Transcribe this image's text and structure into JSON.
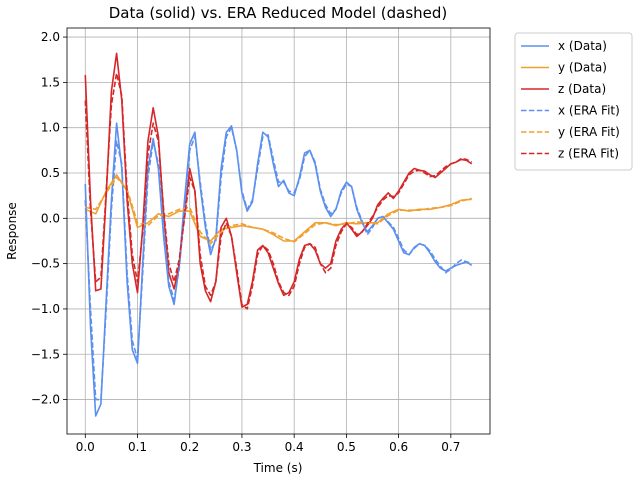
{
  "chart_data": {
    "type": "line",
    "title": "Data (solid) vs. ERA Reduced Model (dashed)",
    "xlabel": "Time (s)",
    "ylabel": "Response",
    "xlim": [
      -0.035,
      0.775
    ],
    "ylim": [
      -2.38,
      2.1
    ],
    "xticks": [
      0.0,
      0.1,
      0.2,
      0.3,
      0.4,
      0.5,
      0.6,
      0.7
    ],
    "xtick_labels": [
      "0.0",
      "0.1",
      "0.2",
      "0.3",
      "0.4",
      "0.5",
      "0.6",
      "0.7"
    ],
    "yticks": [
      2.0,
      1.5,
      1.0,
      0.5,
      0.0,
      -0.5,
      -1.0,
      -1.5,
      -2.0
    ],
    "ytick_labels": [
      "2.0",
      "1.5",
      "1.0",
      "0.5",
      "0.0",
      "−0.5",
      "−1.0",
      "−1.5",
      "−2.0"
    ],
    "grid": true,
    "legend_position": "outside-top-right",
    "series": [
      {
        "name": "x (Data)",
        "color": "#5b8ff0",
        "dash": "solid",
        "x": [
          0.0,
          0.01,
          0.02,
          0.03,
          0.04,
          0.05,
          0.06,
          0.07,
          0.08,
          0.09,
          0.1,
          0.11,
          0.12,
          0.13,
          0.14,
          0.15,
          0.16,
          0.17,
          0.18,
          0.19,
          0.2,
          0.21,
          0.22,
          0.23,
          0.24,
          0.25,
          0.26,
          0.27,
          0.28,
          0.29,
          0.3,
          0.31,
          0.32,
          0.33,
          0.34,
          0.35,
          0.36,
          0.37,
          0.38,
          0.39,
          0.4,
          0.41,
          0.42,
          0.43,
          0.44,
          0.45,
          0.46,
          0.47,
          0.48,
          0.49,
          0.5,
          0.51,
          0.52,
          0.53,
          0.54,
          0.55,
          0.56,
          0.57,
          0.58,
          0.59,
          0.6,
          0.61,
          0.62,
          0.63,
          0.64,
          0.65,
          0.66,
          0.67,
          0.68,
          0.69,
          0.7,
          0.71,
          0.72,
          0.73,
          0.74
        ],
        "y": [
          0.38,
          -1.2,
          -2.18,
          -2.05,
          -0.9,
          0.2,
          1.05,
          0.55,
          -0.7,
          -1.45,
          -1.6,
          -0.5,
          0.55,
          0.88,
          0.55,
          -0.2,
          -0.75,
          -0.95,
          -0.5,
          0.2,
          0.82,
          0.95,
          0.35,
          -0.1,
          -0.4,
          -0.22,
          0.55,
          0.95,
          1.02,
          0.75,
          0.28,
          0.08,
          0.18,
          0.6,
          0.95,
          0.9,
          0.6,
          0.35,
          0.42,
          0.28,
          0.25,
          0.45,
          0.72,
          0.75,
          0.6,
          0.3,
          0.12,
          0.02,
          0.1,
          0.3,
          0.4,
          0.35,
          0.1,
          -0.05,
          -0.15,
          -0.08,
          0.0,
          0.02,
          -0.05,
          -0.12,
          -0.25,
          -0.38,
          -0.4,
          -0.32,
          -0.28,
          -0.3,
          -0.38,
          -0.48,
          -0.55,
          -0.58,
          -0.55,
          -0.52,
          -0.5,
          -0.48,
          -0.52
        ]
      },
      {
        "name": "y (Data)",
        "color": "#f0a030",
        "dash": "solid",
        "x": [
          0.0,
          0.02,
          0.04,
          0.06,
          0.08,
          0.1,
          0.12,
          0.14,
          0.16,
          0.18,
          0.2,
          0.22,
          0.24,
          0.26,
          0.28,
          0.3,
          0.32,
          0.34,
          0.36,
          0.38,
          0.4,
          0.42,
          0.44,
          0.46,
          0.48,
          0.5,
          0.52,
          0.54,
          0.56,
          0.58,
          0.6,
          0.62,
          0.64,
          0.66,
          0.68,
          0.7,
          0.72,
          0.74
        ],
        "y": [
          0.1,
          0.05,
          0.3,
          0.48,
          0.3,
          -0.1,
          -0.05,
          0.05,
          0.02,
          0.08,
          0.08,
          -0.2,
          -0.25,
          -0.12,
          -0.1,
          -0.08,
          -0.1,
          -0.12,
          -0.18,
          -0.25,
          -0.25,
          -0.15,
          -0.05,
          -0.05,
          -0.08,
          -0.05,
          -0.06,
          -0.05,
          -0.05,
          0.05,
          0.1,
          0.08,
          0.1,
          0.1,
          0.12,
          0.15,
          0.2,
          0.21
        ]
      },
      {
        "name": "z (Data)",
        "color": "#d62728",
        "dash": "solid",
        "x": [
          0.0,
          0.01,
          0.02,
          0.03,
          0.04,
          0.05,
          0.06,
          0.07,
          0.08,
          0.09,
          0.1,
          0.11,
          0.12,
          0.13,
          0.14,
          0.15,
          0.16,
          0.17,
          0.18,
          0.19,
          0.2,
          0.21,
          0.22,
          0.23,
          0.24,
          0.25,
          0.26,
          0.27,
          0.28,
          0.29,
          0.3,
          0.31,
          0.32,
          0.33,
          0.34,
          0.35,
          0.36,
          0.37,
          0.38,
          0.39,
          0.4,
          0.41,
          0.42,
          0.43,
          0.44,
          0.45,
          0.46,
          0.47,
          0.48,
          0.49,
          0.5,
          0.51,
          0.52,
          0.53,
          0.54,
          0.55,
          0.56,
          0.57,
          0.58,
          0.59,
          0.6,
          0.61,
          0.62,
          0.63,
          0.64,
          0.65,
          0.66,
          0.67,
          0.68,
          0.69,
          0.7,
          0.71,
          0.72,
          0.73,
          0.74
        ],
        "y": [
          1.58,
          0.2,
          -0.8,
          -0.78,
          0.25,
          1.4,
          1.82,
          1.3,
          0.2,
          -0.5,
          -0.82,
          -0.1,
          0.85,
          1.22,
          0.9,
          0.05,
          -0.6,
          -0.78,
          -0.5,
          0.05,
          0.55,
          0.3,
          -0.5,
          -0.8,
          -0.92,
          -0.7,
          -0.1,
          0.0,
          -0.2,
          -0.6,
          -0.98,
          -0.95,
          -0.7,
          -0.35,
          -0.3,
          -0.38,
          -0.55,
          -0.72,
          -0.85,
          -0.82,
          -0.7,
          -0.45,
          -0.3,
          -0.28,
          -0.35,
          -0.5,
          -0.55,
          -0.5,
          -0.25,
          -0.12,
          -0.05,
          -0.12,
          -0.2,
          -0.15,
          -0.08,
          0.0,
          0.15,
          0.22,
          0.28,
          0.22,
          0.3,
          0.4,
          0.5,
          0.55,
          0.53,
          0.52,
          0.48,
          0.45,
          0.5,
          0.55,
          0.6,
          0.62,
          0.65,
          0.64,
          0.6
        ]
      },
      {
        "name": "x (ERA Fit)",
        "color": "#5b8ff0",
        "dash": "dashed",
        "x": [
          0.0,
          0.01,
          0.02,
          0.03,
          0.04,
          0.05,
          0.06,
          0.07,
          0.08,
          0.09,
          0.1,
          0.11,
          0.12,
          0.13,
          0.14,
          0.15,
          0.16,
          0.17,
          0.18,
          0.19,
          0.2,
          0.21,
          0.22,
          0.23,
          0.24,
          0.25,
          0.26,
          0.27,
          0.28,
          0.29,
          0.3,
          0.31,
          0.32,
          0.33,
          0.34,
          0.35,
          0.36,
          0.37,
          0.38,
          0.39,
          0.4,
          0.41,
          0.42,
          0.43,
          0.44,
          0.45,
          0.46,
          0.47,
          0.48,
          0.49,
          0.5,
          0.51,
          0.52,
          0.53,
          0.54,
          0.55,
          0.56,
          0.57,
          0.58,
          0.59,
          0.6,
          0.61,
          0.62,
          0.63,
          0.64,
          0.65,
          0.66,
          0.67,
          0.68,
          0.69,
          0.7,
          0.71,
          0.72,
          0.73,
          0.74
        ],
        "y": [
          0.2,
          -1.0,
          -2.0,
          -2.0,
          -1.0,
          0.1,
          0.85,
          0.6,
          -0.6,
          -1.35,
          -1.55,
          -0.6,
          0.45,
          0.85,
          0.6,
          -0.1,
          -0.7,
          -0.9,
          -0.55,
          0.1,
          0.75,
          0.9,
          0.4,
          -0.05,
          -0.35,
          -0.25,
          0.45,
          0.9,
          1.0,
          0.75,
          0.3,
          0.1,
          0.2,
          0.55,
          0.9,
          0.92,
          0.65,
          0.4,
          0.4,
          0.3,
          0.28,
          0.42,
          0.68,
          0.75,
          0.62,
          0.32,
          0.15,
          0.05,
          0.1,
          0.28,
          0.38,
          0.35,
          0.12,
          -0.03,
          -0.18,
          -0.1,
          0.0,
          0.02,
          -0.04,
          -0.1,
          -0.22,
          -0.35,
          -0.4,
          -0.33,
          -0.28,
          -0.3,
          -0.36,
          -0.45,
          -0.53,
          -0.6,
          -0.56,
          -0.5,
          -0.46,
          -0.48,
          -0.5
        ]
      },
      {
        "name": "y (ERA Fit)",
        "color": "#f0a030",
        "dash": "dashed",
        "x": [
          0.0,
          0.02,
          0.04,
          0.06,
          0.08,
          0.1,
          0.12,
          0.14,
          0.16,
          0.18,
          0.2,
          0.22,
          0.24,
          0.26,
          0.28,
          0.3,
          0.32,
          0.34,
          0.36,
          0.38,
          0.4,
          0.42,
          0.44,
          0.46,
          0.48,
          0.5,
          0.52,
          0.54,
          0.56,
          0.58,
          0.6,
          0.62,
          0.64,
          0.66,
          0.68,
          0.7,
          0.72,
          0.74
        ],
        "y": [
          0.12,
          0.1,
          0.28,
          0.45,
          0.32,
          -0.05,
          -0.08,
          0.03,
          0.05,
          0.1,
          0.12,
          -0.15,
          -0.28,
          -0.15,
          -0.08,
          -0.06,
          -0.1,
          -0.12,
          -0.16,
          -0.22,
          -0.26,
          -0.17,
          -0.07,
          -0.05,
          -0.07,
          -0.06,
          -0.04,
          -0.05,
          -0.06,
          0.03,
          0.09,
          0.09,
          0.09,
          0.11,
          0.12,
          0.14,
          0.19,
          0.22
        ]
      },
      {
        "name": "z (ERA Fit)",
        "color": "#d62728",
        "dash": "dashed",
        "x": [
          0.0,
          0.01,
          0.02,
          0.03,
          0.04,
          0.05,
          0.06,
          0.07,
          0.08,
          0.09,
          0.1,
          0.11,
          0.12,
          0.13,
          0.14,
          0.15,
          0.16,
          0.17,
          0.18,
          0.19,
          0.2,
          0.21,
          0.22,
          0.23,
          0.24,
          0.25,
          0.26,
          0.27,
          0.28,
          0.29,
          0.3,
          0.31,
          0.32,
          0.33,
          0.34,
          0.35,
          0.36,
          0.37,
          0.38,
          0.39,
          0.4,
          0.41,
          0.42,
          0.43,
          0.44,
          0.45,
          0.46,
          0.47,
          0.48,
          0.49,
          0.5,
          0.51,
          0.52,
          0.53,
          0.54,
          0.55,
          0.56,
          0.57,
          0.58,
          0.59,
          0.6,
          0.61,
          0.62,
          0.63,
          0.64,
          0.65,
          0.66,
          0.67,
          0.68,
          0.69,
          0.7,
          0.71,
          0.72,
          0.73,
          0.74
        ],
        "y": [
          1.3,
          0.1,
          -0.7,
          -0.65,
          0.3,
          1.25,
          1.6,
          1.35,
          0.3,
          -0.4,
          -0.7,
          -0.15,
          0.7,
          1.05,
          0.85,
          0.1,
          -0.5,
          -0.7,
          -0.45,
          0.0,
          0.45,
          0.3,
          -0.4,
          -0.75,
          -0.85,
          -0.7,
          -0.2,
          -0.05,
          -0.2,
          -0.55,
          -0.95,
          -1.0,
          -0.75,
          -0.4,
          -0.3,
          -0.35,
          -0.5,
          -0.7,
          -0.82,
          -0.85,
          -0.75,
          -0.5,
          -0.32,
          -0.28,
          -0.32,
          -0.5,
          -0.6,
          -0.55,
          -0.3,
          -0.15,
          -0.06,
          -0.1,
          -0.18,
          -0.15,
          -0.06,
          0.02,
          0.12,
          0.2,
          0.25,
          0.24,
          0.28,
          0.38,
          0.48,
          0.52,
          0.53,
          0.5,
          0.46,
          0.47,
          0.52,
          0.57,
          0.6,
          0.62,
          0.66,
          0.65,
          0.62
        ]
      }
    ]
  }
}
